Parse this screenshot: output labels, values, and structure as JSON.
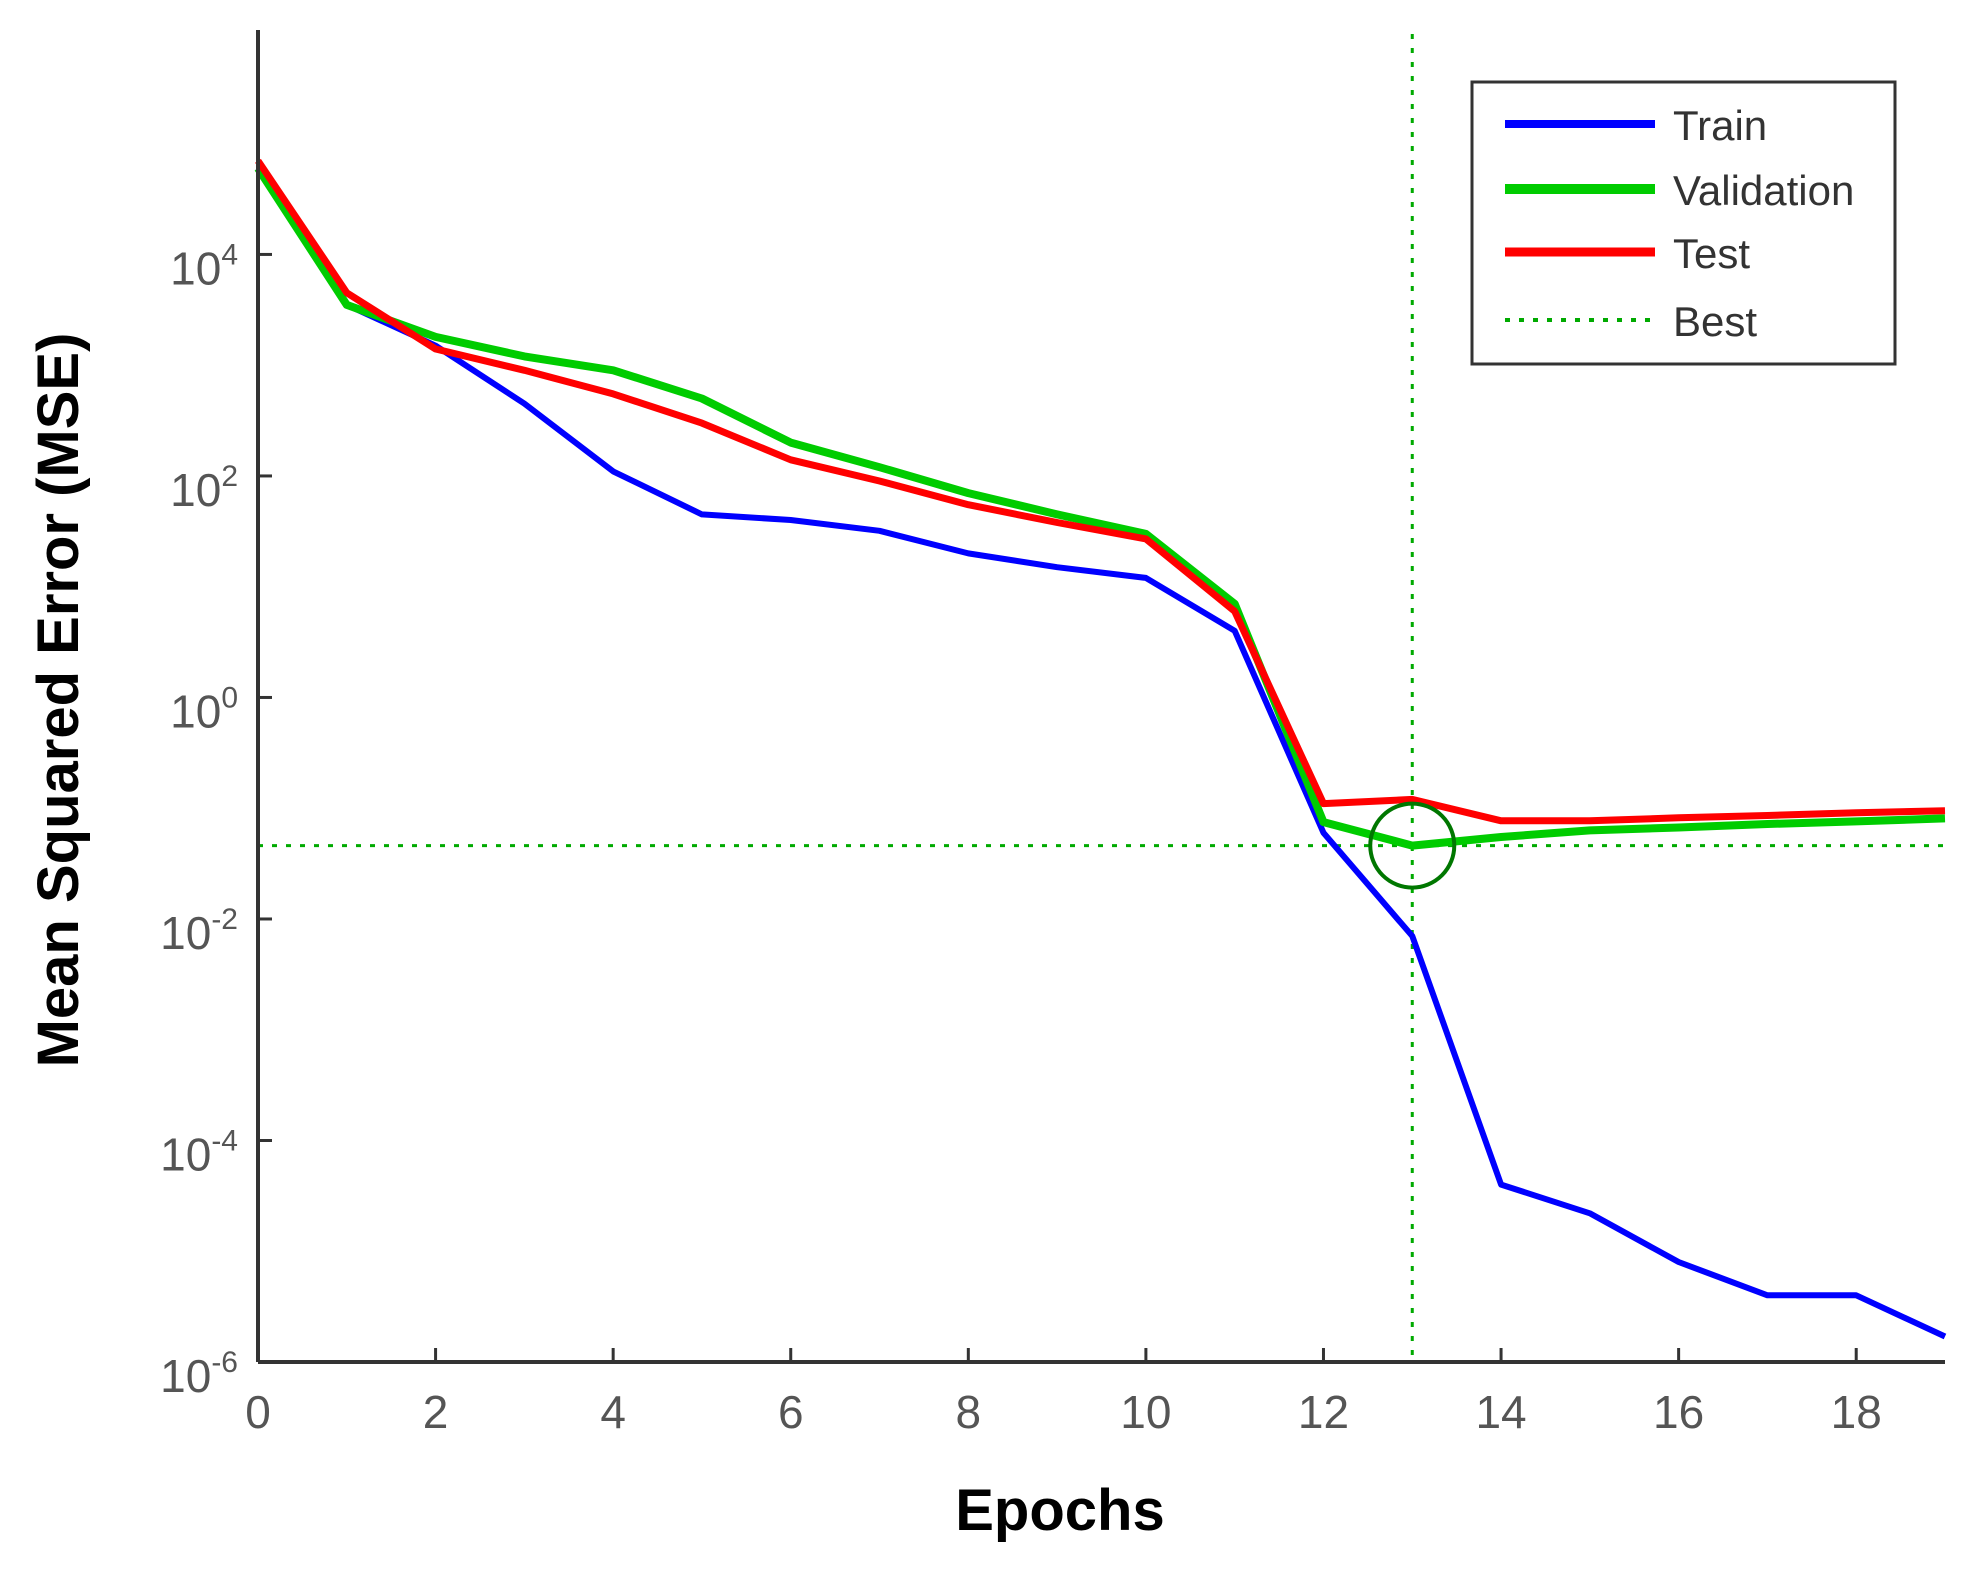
{
  "chart_data": {
    "type": "line",
    "title": "",
    "xlabel": "Epochs",
    "ylabel": "Mean Squared Error (MSE)",
    "yscale": "log",
    "xlim": [
      0,
      19
    ],
    "ylim_exponent": [
      -6,
      5.9
    ],
    "xticks": [
      0,
      2,
      4,
      6,
      8,
      10,
      12,
      14,
      16,
      18
    ],
    "xtick_labels": [
      "0",
      "2",
      "4",
      "6",
      "8",
      "10",
      "12",
      "14",
      "16",
      "18"
    ],
    "yticks": [
      {
        "base": "10",
        "exp": "4",
        "value": 10000
      },
      {
        "base": "10",
        "exp": "2",
        "value": 100
      },
      {
        "base": "10",
        "exp": "0",
        "value": 1
      },
      {
        "base": "10",
        "exp": "-2",
        "value": 0.01
      },
      {
        "base": "10",
        "exp": "-4",
        "value": 0.0001
      },
      {
        "base": "10",
        "exp": "-6",
        "value": 1e-06
      }
    ],
    "x": [
      0,
      1,
      2,
      3,
      4,
      5,
      6,
      7,
      8,
      9,
      10,
      11,
      12,
      13,
      14,
      15,
      16,
      17,
      18,
      19
    ],
    "series": [
      {
        "name": "Train",
        "color": "#0000ff",
        "values": [
          60000,
          3500,
          1500,
          450,
          110,
          45,
          40,
          32,
          20,
          15,
          12,
          4,
          0.06,
          0.007,
          4e-05,
          2.2e-05,
          8e-06,
          4e-06,
          4e-06,
          1.7e-06
        ]
      },
      {
        "name": "Validation",
        "color": "#00cc00",
        "values": [
          60000,
          3500,
          1800,
          1200,
          900,
          500,
          200,
          120,
          70,
          45,
          30,
          7,
          0.075,
          0.046,
          0.055,
          0.063,
          0.067,
          0.072,
          0.076,
          0.081
        ]
      },
      {
        "name": "Test",
        "color": "#ff0000",
        "values": [
          70000,
          4500,
          1400,
          900,
          550,
          300,
          140,
          90,
          55,
          38,
          27,
          6,
          0.11,
          0.12,
          0.077,
          0.077,
          0.082,
          0.086,
          0.091,
          0.095
        ]
      }
    ],
    "best": {
      "label": "Best",
      "color": "#00aa00",
      "epoch": 13,
      "value": 0.046
    },
    "legend": {
      "position": "top-right",
      "entries": [
        "Train",
        "Validation",
        "Test",
        "Best"
      ]
    }
  }
}
